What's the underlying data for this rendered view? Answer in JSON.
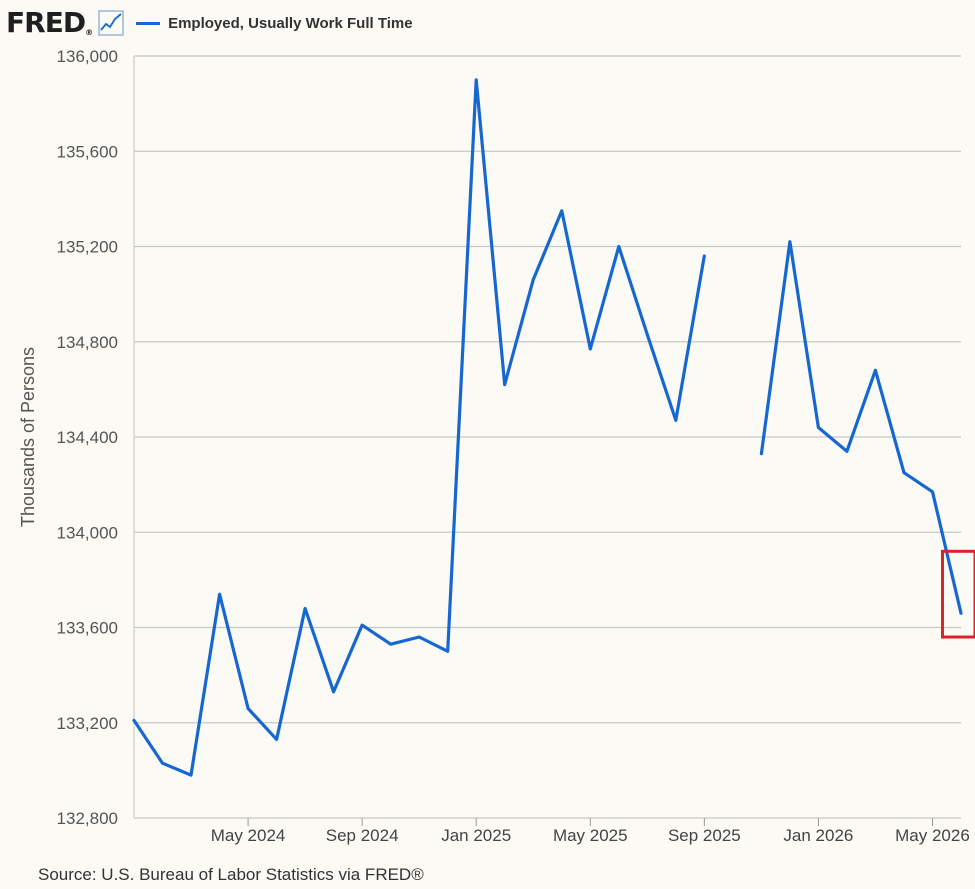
{
  "header": {
    "logo_text": "FRED",
    "logo_mark": "®",
    "logo_icon": "line-graph-icon"
  },
  "source": "Source: U.S. Bureau of Labor Statistics via FRED®",
  "colors": {
    "series": "#1668d0",
    "grid": "#c8c8c8",
    "plot_bg": "#fbfaf5",
    "highlight": "#d9232d"
  },
  "chart_data": {
    "type": "line",
    "ylabel": "Thousands of Persons",
    "ylim": [
      132800,
      136000
    ],
    "yticks": [
      132800,
      133200,
      133600,
      134000,
      134400,
      134800,
      135200,
      135600,
      136000
    ],
    "ytick_labels": [
      "132,800",
      "133,200",
      "133,600",
      "134,000",
      "134,400",
      "134,800",
      "135,200",
      "135,600",
      "136,000"
    ],
    "xlim": [
      "2024-01",
      "2026-06"
    ],
    "xticks": [
      "2024-05",
      "2024-09",
      "2025-01",
      "2025-05",
      "2025-09",
      "2026-01",
      "2026-05"
    ],
    "xtick_labels": [
      "May 2024",
      "Sep 2024",
      "Jan 2025",
      "May 2025",
      "Sep 2025",
      "Jan 2026",
      "May 2026"
    ],
    "grid": true,
    "legend_position": "top-left",
    "series": [
      {
        "name": "Employed, Usually Work Full Time",
        "x": [
          "2024-01",
          "2024-02",
          "2024-03",
          "2024-04",
          "2024-05",
          "2024-06",
          "2024-07",
          "2024-08",
          "2024-09",
          "2024-10",
          "2024-11",
          "2024-12",
          "2025-01",
          "2025-02",
          "2025-03",
          "2025-04",
          "2025-05",
          "2025-06",
          "2025-07",
          "2025-08",
          "2025-09",
          "2025-10",
          "2025-11",
          "2025-12",
          "2026-01",
          "2026-02",
          "2026-03",
          "2026-04",
          "2026-05",
          "2026-06"
        ],
        "values": [
          133210,
          133030,
          132980,
          133740,
          133260,
          133130,
          133680,
          133330,
          133610,
          133530,
          133560,
          133500,
          135900,
          134620,
          135060,
          135350,
          134770,
          135200,
          134830,
          134470,
          135160,
          null,
          134330,
          135220,
          134440,
          134340,
          134680,
          134250,
          134170,
          133660
        ]
      }
    ],
    "annotations": [
      {
        "type": "highlight-box",
        "x": [
          "2026-05",
          "2026-06"
        ],
        "y": [
          133560,
          133920
        ]
      }
    ]
  }
}
